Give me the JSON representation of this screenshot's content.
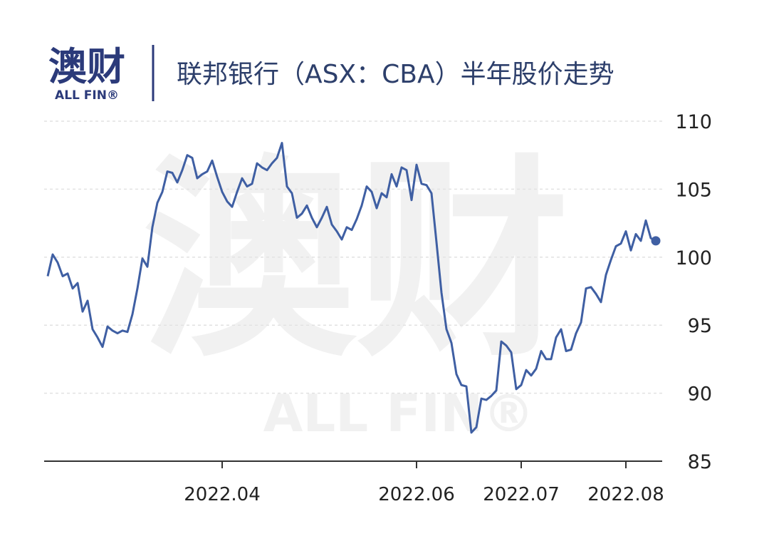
{
  "logo": {
    "name": "澳财",
    "sub": "ALL FIN®"
  },
  "watermark": {
    "name": "澳财",
    "sub": "ALL FIN®"
  },
  "chart_data": {
    "type": "line",
    "title": "联邦银行（ASX：CBA）半年股价走势",
    "categories": [
      null,
      null,
      null,
      null,
      null,
      null,
      null,
      null,
      null,
      null,
      null,
      null,
      null,
      null,
      null,
      null,
      null,
      null,
      null,
      null,
      null,
      null,
      null,
      null,
      null,
      null,
      null,
      null,
      null,
      null,
      null,
      null,
      null,
      null,
      null,
      "2022.04",
      null,
      null,
      null,
      null,
      null,
      null,
      null,
      null,
      null,
      null,
      null,
      null,
      null,
      null,
      null,
      null,
      null,
      null,
      null,
      null,
      null,
      null,
      null,
      null,
      null,
      null,
      null,
      null,
      null,
      null,
      null,
      null,
      null,
      null,
      null,
      null,
      null,
      null,
      "2022.06",
      null,
      null,
      null,
      null,
      null,
      null,
      null,
      null,
      null,
      null,
      null,
      null,
      null,
      null,
      null,
      null,
      null,
      null,
      null,
      null,
      "2022.07",
      null,
      null,
      null,
      null,
      null,
      null,
      null,
      null,
      null,
      null,
      null,
      null,
      null,
      null,
      null,
      null,
      null,
      null,
      null,
      null,
      "2022.08",
      null,
      null,
      null,
      null,
      null,
      null
    ],
    "series": [
      {
        "color": "#3f5fa3",
        "values": [
          98.6,
          100.2,
          99.6,
          98.6,
          98.8,
          97.7,
          98.1,
          96.0,
          96.8,
          94.7,
          94.1,
          93.4,
          94.9,
          94.6,
          94.4,
          94.6,
          94.5,
          95.8,
          97.7,
          99.9,
          99.3,
          102.2,
          104.0,
          104.8,
          106.3,
          106.2,
          105.5,
          106.4,
          107.5,
          107.3,
          105.8,
          106.1,
          106.3,
          107.1,
          105.9,
          104.8,
          104.1,
          103.7,
          104.8,
          105.8,
          105.2,
          105.4,
          106.9,
          106.6,
          106.4,
          106.9,
          107.3,
          108.4,
          105.2,
          104.7,
          102.9,
          103.2,
          103.8,
          102.9,
          102.2,
          102.9,
          103.7,
          102.4,
          101.9,
          101.3,
          102.2,
          102.0,
          102.8,
          103.8,
          105.2,
          104.8,
          103.6,
          104.7,
          104.4,
          106.1,
          105.2,
          106.6,
          106.4,
          104.2,
          106.8,
          105.4,
          105.3,
          104.7,
          101.1,
          97.4,
          94.7,
          93.7,
          91.4,
          90.6,
          90.5,
          87.1,
          87.5,
          89.6,
          89.5,
          89.8,
          90.2,
          93.8,
          93.5,
          93.0,
          90.3,
          90.6,
          91.7,
          91.3,
          91.8,
          93.1,
          92.5,
          92.5,
          94.1,
          94.7,
          93.1,
          93.2,
          94.4,
          95.2,
          97.7,
          97.8,
          97.3,
          96.7,
          98.7,
          99.8,
          100.8,
          101.0,
          101.9,
          100.5,
          101.7,
          101.2,
          102.7,
          101.4,
          101.2
        ]
      }
    ],
    "ylim": [
      85,
      110
    ],
    "yticks": [
      85,
      90,
      95,
      100,
      105,
      110
    ],
    "grid": true,
    "end_marker": true
  }
}
